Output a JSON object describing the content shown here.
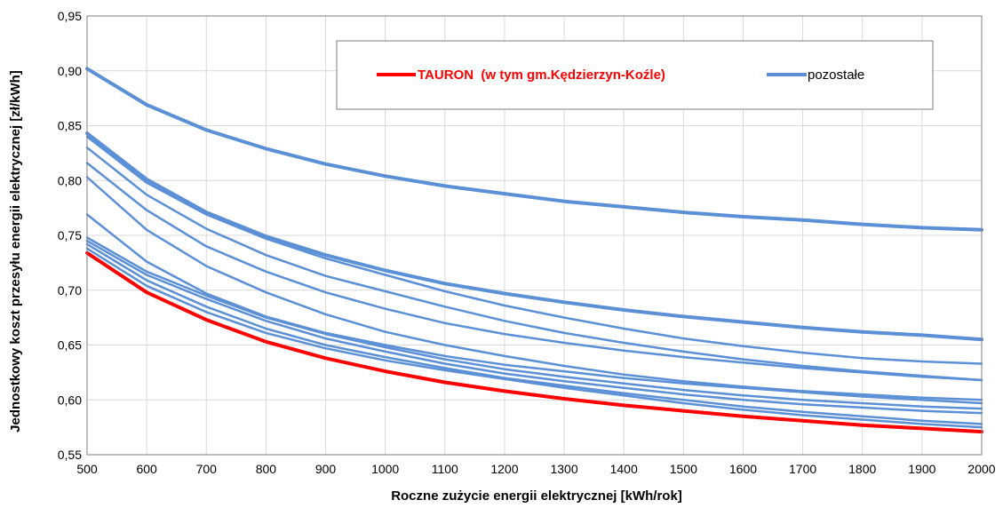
{
  "chart_data": {
    "type": "line",
    "title": "",
    "xlabel": "Roczne zużycie energii elektrycznej [kWh/rok]",
    "ylabel": "Jednostkowy koszt przesyłu energii elektrycznej [zł/kWh]",
    "x": [
      500,
      600,
      700,
      800,
      900,
      1000,
      1100,
      1200,
      1300,
      1400,
      1500,
      1600,
      1700,
      1800,
      1900,
      2000
    ],
    "x_ticks": [
      "500",
      "600",
      "700",
      "800",
      "900",
      "1000",
      "1100",
      "1200",
      "1300",
      "1400",
      "1500",
      "1600",
      "1700",
      "1800",
      "1900",
      "2000"
    ],
    "xlim": [
      500,
      2000
    ],
    "ylim": [
      0.55,
      0.95
    ],
    "y_ticks": [
      "0,55",
      "0,60",
      "0,65",
      "0,70",
      "0,75",
      "0,80",
      "0,85",
      "0,90",
      "0,95"
    ],
    "grid": true,
    "legend_position": "top-center",
    "legend": [
      {
        "label": "TAURON  (w tym gm.Kędzierzyn-Koźle)",
        "color": "#ff0000"
      },
      {
        "label": "pozostałe",
        "color": "#5b8fd6"
      }
    ],
    "series": [
      {
        "name": "TAURON  (w tym gm.Kędzierzyn-Koźle)",
        "color": "#ff0000",
        "width": 4,
        "values": [
          0.734,
          0.698,
          0.673,
          0.653,
          0.638,
          0.626,
          0.616,
          0.608,
          0.601,
          0.595,
          0.59,
          0.585,
          0.581,
          0.577,
          0.574,
          0.571
        ]
      },
      {
        "color": "#5b8fd6",
        "width": 4,
        "values": [
          0.902,
          0.869,
          0.846,
          0.829,
          0.815,
          0.804,
          0.795,
          0.788,
          0.781,
          0.776,
          0.771,
          0.767,
          0.764,
          0.76,
          0.757,
          0.755
        ]
      },
      {
        "color": "#5b8fd6",
        "width": 4,
        "values": [
          0.843,
          0.801,
          0.771,
          0.749,
          0.732,
          0.718,
          0.706,
          0.697,
          0.689,
          0.682,
          0.676,
          0.671,
          0.666,
          0.662,
          0.659,
          0.655
        ]
      },
      {
        "color": "#5b8fd6",
        "width": 2.5,
        "values": [
          0.84,
          0.798,
          0.769,
          0.747,
          0.729,
          0.714,
          0.699,
          0.686,
          0.675,
          0.665,
          0.656,
          0.649,
          0.643,
          0.638,
          0.635,
          0.633
        ]
      },
      {
        "color": "#5b8fd6",
        "width": 2.5,
        "values": [
          0.83,
          0.787,
          0.756,
          0.732,
          0.713,
          0.699,
          0.685,
          0.672,
          0.661,
          0.652,
          0.644,
          0.637,
          0.631,
          0.626,
          0.622,
          0.618
        ]
      },
      {
        "color": "#5b8fd6",
        "width": 2.5,
        "values": [
          0.816,
          0.773,
          0.74,
          0.717,
          0.698,
          0.683,
          0.67,
          0.66,
          0.652,
          0.645,
          0.639,
          0.634,
          0.629,
          0.625,
          0.621,
          0.618
        ]
      },
      {
        "color": "#5b8fd6",
        "width": 2.5,
        "values": [
          0.803,
          0.755,
          0.722,
          0.698,
          0.678,
          0.662,
          0.65,
          0.64,
          0.631,
          0.623,
          0.617,
          0.612,
          0.608,
          0.605,
          0.602,
          0.6
        ]
      },
      {
        "color": "#5b8fd6",
        "width": 2.5,
        "values": [
          0.769,
          0.726,
          0.697,
          0.676,
          0.661,
          0.65,
          0.64,
          0.632,
          0.626,
          0.62,
          0.615,
          0.611,
          0.607,
          0.603,
          0.6,
          0.597
        ]
      },
      {
        "color": "#5b8fd6",
        "width": 2.5,
        "values": [
          0.748,
          0.717,
          0.695,
          0.675,
          0.66,
          0.648,
          0.637,
          0.628,
          0.621,
          0.615,
          0.609,
          0.604,
          0.6,
          0.597,
          0.594,
          0.592
        ]
      },
      {
        "color": "#5b8fd6",
        "width": 2.5,
        "values": [
          0.745,
          0.714,
          0.692,
          0.672,
          0.656,
          0.644,
          0.633,
          0.624,
          0.617,
          0.611,
          0.605,
          0.6,
          0.596,
          0.593,
          0.59,
          0.588
        ]
      },
      {
        "color": "#5b8fd6",
        "width": 2.5,
        "values": [
          0.742,
          0.709,
          0.685,
          0.665,
          0.65,
          0.639,
          0.629,
          0.62,
          0.613,
          0.606,
          0.6,
          0.594,
          0.589,
          0.585,
          0.581,
          0.578
        ]
      },
      {
        "color": "#5b8fd6",
        "width": 2.5,
        "values": [
          0.738,
          0.704,
          0.68,
          0.661,
          0.647,
          0.636,
          0.627,
          0.619,
          0.611,
          0.604,
          0.597,
          0.591,
          0.586,
          0.582,
          0.578,
          0.575
        ]
      }
    ]
  }
}
